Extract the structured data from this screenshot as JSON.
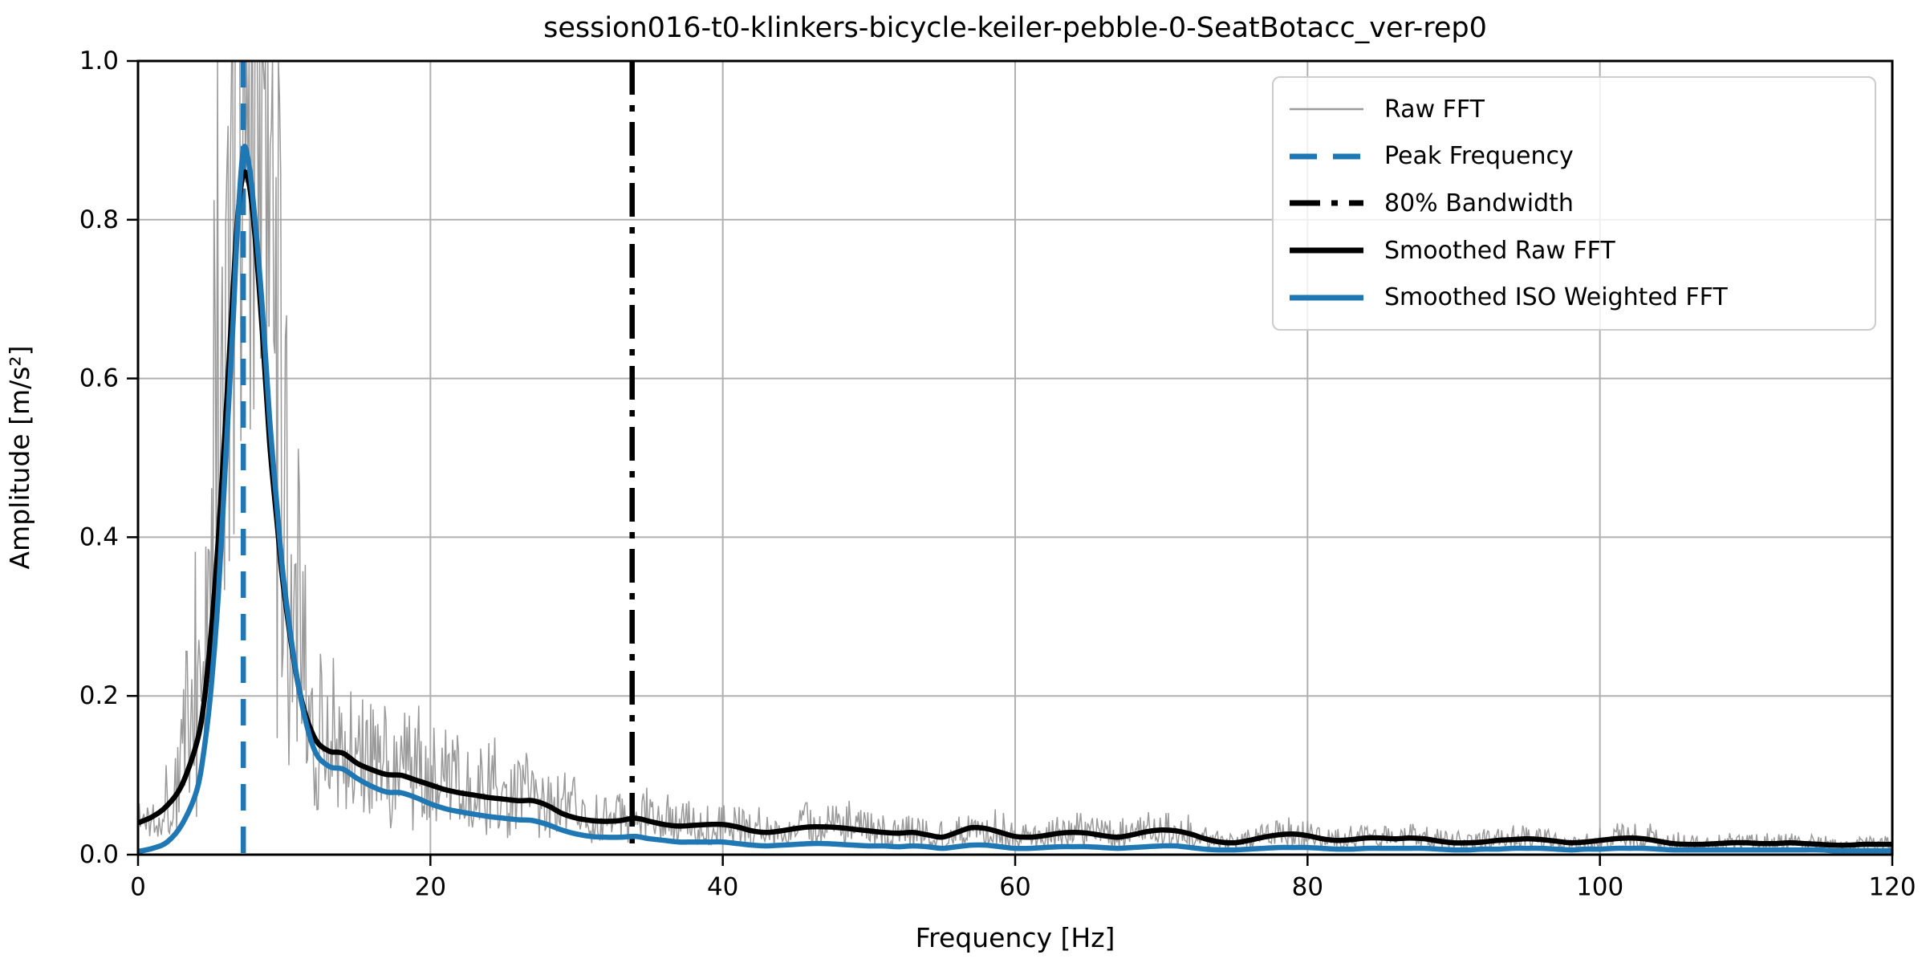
{
  "figure": {
    "title": "session016-t0-klinkers-bicycle-keiler-pebble-0-SeatBotacc_ver-rep0",
    "background_color": "#ffffff"
  },
  "chart_data": {
    "type": "line",
    "title": "session016-t0-klinkers-bicycle-keiler-pebble-0-SeatBotacc_ver-rep0",
    "xlabel": "Frequency [Hz]",
    "ylabel": "Amplitude [m/s²]",
    "xlim": [
      0,
      120
    ],
    "ylim": [
      0.0,
      1.0
    ],
    "xticks": [
      "0",
      "20",
      "40",
      "60",
      "80",
      "100",
      "120"
    ],
    "yticks": [
      "0.0",
      "0.2",
      "0.4",
      "0.6",
      "0.8",
      "1.0"
    ],
    "grid": true,
    "grid_color": "#b0b0b0",
    "frame_color": "#000000",
    "legend_position": "upper right",
    "annotations": {
      "peak_frequency_hz": 7.2,
      "bandwidth_80_percent_hz": 33.8,
      "peak_amplitude_smoothed_raw": 0.857,
      "peak_amplitude_smoothed_iso": 0.888
    },
    "series": [
      {
        "name": "Raw FFT",
        "kind": "noisy-line",
        "color": "#9a9a9a",
        "width": 1.5,
        "noise": {
          "base_series": 3,
          "seed": 1337,
          "step_hz": 0.08,
          "mult_base": 0.3,
          "mult_rand": 1.5,
          "rand_pow": 1.3,
          "boost_range_hz": [
            2.5,
            11.5
          ],
          "boost_inside": 1.6,
          "boost_outside": 0.35,
          "clip": [
            0.002,
            1.0
          ]
        }
      },
      {
        "name": "Peak Frequency",
        "kind": "vline",
        "color": "#1f77b4",
        "width": 6.5,
        "dash": "33 20",
        "x_hz": 7.2
      },
      {
        "name": "80% Bandwidth",
        "kind": "vline",
        "color": "#000000",
        "width": 6.5,
        "dash": "42 13 8 13",
        "x_hz": 33.8
      },
      {
        "name": "Smoothed Raw FFT",
        "kind": "smooth-line",
        "color": "#000000",
        "width": 6.5,
        "x": [
          0,
          1,
          2,
          3,
          4,
          4.5,
          5,
          5.5,
          6,
          6.5,
          6.8,
          7.2,
          7.6,
          8,
          8.5,
          9,
          9.5,
          10,
          11,
          12,
          13,
          14,
          15,
          16,
          17,
          18,
          19,
          20,
          21,
          22,
          23,
          24,
          25,
          26,
          27,
          28,
          29,
          30,
          31,
          32,
          33,
          34,
          35,
          36,
          37,
          38,
          39,
          40,
          41,
          42,
          43,
          44,
          45,
          46,
          47,
          48,
          49,
          50,
          51,
          52,
          53,
          54,
          55,
          56,
          57,
          58,
          59,
          60,
          61,
          62,
          63,
          64,
          65,
          66,
          67,
          68,
          69,
          70,
          71,
          72,
          73,
          74,
          75,
          76,
          77,
          78,
          79,
          80,
          81,
          82,
          83,
          84,
          85,
          86,
          87,
          88,
          89,
          90,
          91,
          92,
          93,
          94,
          95,
          96,
          97,
          98,
          99,
          100,
          101,
          102,
          103,
          104,
          105,
          106,
          107,
          108,
          109,
          110,
          111,
          112,
          113,
          114,
          115,
          116,
          117,
          118,
          119,
          120
        ],
        "y": [
          0.04,
          0.048,
          0.062,
          0.088,
          0.14,
          0.19,
          0.28,
          0.4,
          0.55,
          0.71,
          0.8,
          0.857,
          0.845,
          0.78,
          0.66,
          0.52,
          0.42,
          0.33,
          0.21,
          0.15,
          0.131,
          0.128,
          0.115,
          0.107,
          0.101,
          0.1,
          0.094,
          0.088,
          0.082,
          0.078,
          0.075,
          0.072,
          0.07,
          0.068,
          0.068,
          0.062,
          0.052,
          0.046,
          0.043,
          0.042,
          0.043,
          0.046,
          0.042,
          0.038,
          0.036,
          0.037,
          0.038,
          0.038,
          0.035,
          0.03,
          0.028,
          0.03,
          0.033,
          0.035,
          0.035,
          0.034,
          0.032,
          0.03,
          0.028,
          0.027,
          0.028,
          0.025,
          0.022,
          0.028,
          0.034,
          0.033,
          0.028,
          0.023,
          0.022,
          0.024,
          0.027,
          0.028,
          0.027,
          0.024,
          0.022,
          0.025,
          0.029,
          0.031,
          0.03,
          0.026,
          0.02,
          0.016,
          0.015,
          0.018,
          0.022,
          0.025,
          0.026,
          0.024,
          0.02,
          0.018,
          0.019,
          0.021,
          0.021,
          0.02,
          0.021,
          0.02,
          0.017,
          0.015,
          0.015,
          0.016,
          0.018,
          0.019,
          0.02,
          0.019,
          0.017,
          0.015,
          0.016,
          0.018,
          0.02,
          0.021,
          0.02,
          0.017,
          0.014,
          0.013,
          0.013,
          0.014,
          0.015,
          0.015,
          0.014,
          0.014,
          0.015,
          0.014,
          0.013,
          0.012,
          0.012,
          0.013,
          0.013,
          0.013
        ]
      },
      {
        "name": "Smoothed ISO Weighted FFT",
        "kind": "smooth-line",
        "color": "#1f77b4",
        "width": 6.5,
        "x": [
          0,
          1,
          2,
          3,
          4,
          4.5,
          5,
          5.5,
          6,
          6.5,
          6.8,
          7.2,
          7.6,
          8,
          8.5,
          9,
          9.5,
          10,
          11,
          12,
          13,
          14,
          15,
          16,
          17,
          18,
          19,
          20,
          21,
          22,
          23,
          24,
          25,
          26,
          27,
          28,
          29,
          30,
          31,
          32,
          33,
          34,
          35,
          36,
          37,
          38,
          39,
          40,
          41,
          42,
          43,
          44,
          45,
          46,
          47,
          48,
          49,
          50,
          51,
          52,
          53,
          54,
          55,
          56,
          57,
          58,
          59,
          60,
          61,
          62,
          63,
          64,
          65,
          66,
          67,
          68,
          69,
          70,
          71,
          72,
          73,
          74,
          75,
          76,
          77,
          78,
          79,
          80,
          81,
          82,
          83,
          84,
          85,
          86,
          87,
          88,
          89,
          90,
          91,
          92,
          93,
          94,
          95,
          96,
          97,
          98,
          99,
          100,
          101,
          102,
          103,
          104,
          105,
          106,
          107,
          108,
          109,
          110,
          111,
          112,
          113,
          114,
          115,
          116,
          117,
          118,
          119,
          120
        ],
        "y": [
          0.004,
          0.008,
          0.016,
          0.038,
          0.08,
          0.13,
          0.21,
          0.33,
          0.5,
          0.67,
          0.79,
          0.888,
          0.868,
          0.8,
          0.69,
          0.55,
          0.44,
          0.34,
          0.21,
          0.135,
          0.112,
          0.108,
          0.096,
          0.086,
          0.079,
          0.078,
          0.072,
          0.064,
          0.058,
          0.054,
          0.051,
          0.048,
          0.046,
          0.044,
          0.043,
          0.038,
          0.031,
          0.026,
          0.023,
          0.022,
          0.022,
          0.023,
          0.02,
          0.018,
          0.016,
          0.016,
          0.016,
          0.016,
          0.014,
          0.012,
          0.011,
          0.012,
          0.013,
          0.014,
          0.014,
          0.013,
          0.012,
          0.011,
          0.011,
          0.01,
          0.011,
          0.01,
          0.008,
          0.01,
          0.012,
          0.012,
          0.01,
          0.008,
          0.008,
          0.009,
          0.01,
          0.01,
          0.01,
          0.009,
          0.008,
          0.009,
          0.01,
          0.011,
          0.011,
          0.009,
          0.007,
          0.006,
          0.006,
          0.007,
          0.008,
          0.009,
          0.009,
          0.009,
          0.008,
          0.007,
          0.007,
          0.008,
          0.008,
          0.008,
          0.008,
          0.008,
          0.007,
          0.006,
          0.006,
          0.007,
          0.007,
          0.008,
          0.008,
          0.008,
          0.007,
          0.006,
          0.007,
          0.007,
          0.008,
          0.008,
          0.008,
          0.007,
          0.006,
          0.006,
          0.006,
          0.006,
          0.006,
          0.006,
          0.006,
          0.006,
          0.006,
          0.006,
          0.006,
          0.005,
          0.005,
          0.005,
          0.005,
          0.005
        ]
      }
    ]
  }
}
